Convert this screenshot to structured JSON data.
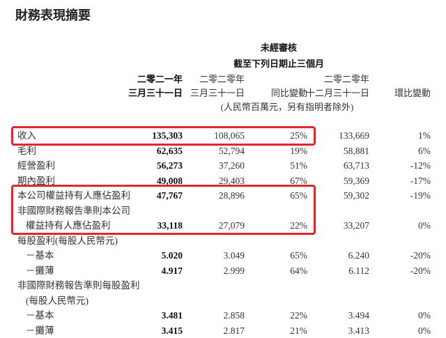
{
  "title": "財務表現摘要",
  "header": {
    "audit": "未經審核",
    "period": "截至下列日期止三個月",
    "columns": [
      {
        "line1": "二零二一年",
        "line2": "三月三十一日"
      },
      {
        "line1": "二零二零年",
        "line2": "三月三十一日"
      },
      {
        "line1": "",
        "line2": "同比變動"
      },
      {
        "line1": "二零二零年",
        "line2": "十二月三十一日"
      },
      {
        "line1": "",
        "line2": "環比變動"
      }
    ],
    "unit": "(人民幣百萬元，另有指明者除外)"
  },
  "highlight_color": "#e3262b",
  "rows": [
    {
      "label": "收入",
      "values": [
        "135,303",
        "108,065",
        "25%",
        "133,669",
        "1%"
      ]
    },
    {
      "label": "毛利",
      "values": [
        "62,635",
        "52,794",
        "19%",
        "58,881",
        "6%"
      ]
    },
    {
      "label": "經營盈利",
      "values": [
        "56,273",
        "37,260",
        "51%",
        "63,713",
        "-12%"
      ]
    },
    {
      "label": "期內盈利",
      "values": [
        "49,008",
        "29,403",
        "67%",
        "59,369",
        "-17%"
      ]
    },
    {
      "label": "本公司權益持有人應佔盈利",
      "values": [
        "47,767",
        "28,896",
        "65%",
        "59,302",
        "-19%"
      ]
    },
    {
      "label": "非國際財務報告準則本公司",
      "values": [
        "",
        "",
        "",
        "",
        ""
      ]
    },
    {
      "label": "權益持有人應佔盈利",
      "values": [
        "33,118",
        "27,079",
        "22%",
        "33,207",
        "0%"
      ]
    },
    {
      "label": "每股盈利(每股人民幣元)",
      "values": [
        "",
        "",
        "",
        "",
        ""
      ]
    },
    {
      "label": "－基本",
      "values": [
        "5.020",
        "3.049",
        "65%",
        "6.240",
        "-20%"
      ]
    },
    {
      "label": "－攤薄",
      "values": [
        "4.917",
        "2.999",
        "64%",
        "6.112",
        "-20%"
      ]
    },
    {
      "label": "非國際財務報告準則每股盈利",
      "values": [
        "",
        "",
        "",
        "",
        ""
      ]
    },
    {
      "label": "(每股人民幣元)",
      "values": [
        "",
        "",
        "",
        "",
        ""
      ]
    },
    {
      "label": "－基本",
      "values": [
        "3.481",
        "2.858",
        "22%",
        "3.494",
        "0%"
      ]
    },
    {
      "label": "－攤薄",
      "values": [
        "3.415",
        "2.817",
        "21%",
        "3.413",
        "0%"
      ]
    }
  ]
}
